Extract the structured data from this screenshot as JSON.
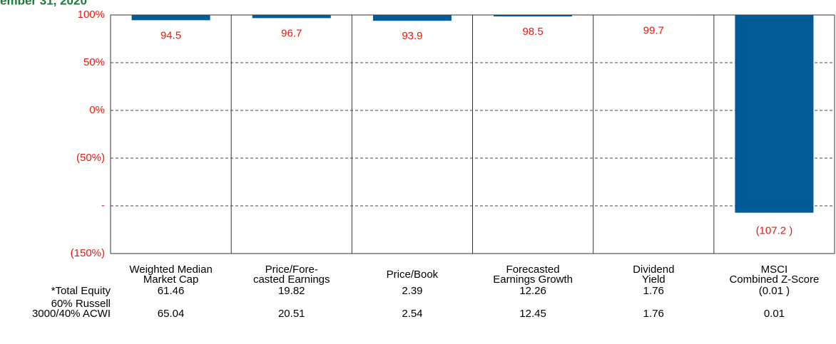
{
  "chart_data": {
    "type": "bar",
    "title": "ember 31, 2020",
    "categories": [
      "Weighted Median\nMarket Cap",
      "Price/Fore-\ncasted Earnings",
      "Price/Book",
      "Forecasted\nEarnings Growth",
      "Dividend\nYield",
      "MSCI\nCombined Z-Score"
    ],
    "values": [
      94.5,
      96.7,
      93.9,
      98.5,
      99.7,
      -107.2
    ],
    "value_labels": [
      "94.5",
      "96.7",
      "93.9",
      "98.5",
      "99.7",
      "(107.2 )"
    ],
    "color": "#005b96",
    "ylim": [
      -150,
      100
    ],
    "yticks": [
      {
        "value": 100,
        "label": "100%"
      },
      {
        "value": 50,
        "label": "50%"
      },
      {
        "value": 0,
        "label": "0%"
      },
      {
        "value": -50,
        "label": "(50%)"
      },
      {
        "value": -100,
        "label": "-"
      },
      {
        "value": -150,
        "label": "(150%)"
      }
    ],
    "grid": true,
    "table": {
      "rows": [
        {
          "label": "*Total Equity",
          "cells": [
            "61.46",
            "19.82",
            "2.39",
            "12.26",
            "1.76",
            "(0.01 )"
          ]
        },
        {
          "label": "60% Russell\n3000/40% ACWI",
          "cells": [
            "65.04",
            "20.51",
            "2.54",
            "12.45",
            "1.76",
            "0.01"
          ]
        }
      ]
    }
  }
}
